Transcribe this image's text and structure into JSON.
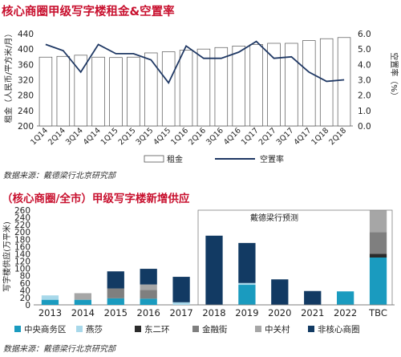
{
  "chart_data": [
    {
      "type": "bar",
      "title": "核心商圈甲级写字楼租金&空置率",
      "ylabel": "租金（人民币/平方米/月）",
      "y2label": "空置率（%）",
      "categories": [
        "1Q14",
        "2Q14",
        "3Q14",
        "4Q14",
        "1Q15",
        "2Q15",
        "3Q15",
        "4Q15",
        "1Q16",
        "2Q16",
        "3Q16",
        "4Q16",
        "1Q17",
        "2Q17",
        "3Q17",
        "4Q17",
        "1Q18",
        "2Q18"
      ],
      "yticks": [
        "200",
        "240",
        "280",
        "320",
        "360",
        "400",
        "440"
      ],
      "y2ticks": [
        "0.0",
        "1.0",
        "2.0",
        "3.0",
        "4.0",
        "5.0",
        "6.0"
      ],
      "ylim": [
        200,
        440
      ],
      "y2lim": [
        0,
        6
      ],
      "series": [
        {
          "name": "租金",
          "type": "bar",
          "axis": "left",
          "values": [
            379,
            381,
            384,
            379,
            378,
            379,
            390,
            393,
            397,
            400,
            404,
            408,
            412,
            415,
            415,
            422,
            427,
            430
          ]
        },
        {
          "name": "空置率",
          "type": "line",
          "axis": "right",
          "values": [
            5.3,
            4.9,
            3.5,
            5.3,
            4.7,
            4.7,
            4.3,
            2.8,
            5.2,
            4.4,
            4.4,
            4.8,
            5.5,
            4.4,
            4.5,
            3.5,
            2.9,
            3.0
          ]
        }
      ],
      "legend": "bottom",
      "source": "数据来源：戴德梁行北京研究部"
    },
    {
      "type": "bar",
      "stacked": true,
      "title": "（核心商圈/全市）甲级写字楼新增供应",
      "ylabel": "写字楼供应(万平米)",
      "categories": [
        "2013",
        "2014",
        "2015",
        "2016",
        "2017",
        "2018",
        "2019",
        "2020",
        "2021",
        "2022",
        "TBC"
      ],
      "yticks": [
        "0",
        "20",
        "40",
        "60",
        "80",
        "100",
        "120",
        "140",
        "160",
        "180",
        "200",
        "220",
        "240",
        "260"
      ],
      "ylim": [
        0,
        260
      ],
      "annotation": "戴德梁行预测",
      "series": [
        {
          "name": "中央商务区",
          "color": "#1a9bbf",
          "values": [
            14,
            14,
            18,
            17,
            0,
            0,
            55,
            0,
            0,
            37,
            130
          ]
        },
        {
          "name": "燕莎",
          "color": "#a8d8ea",
          "values": [
            12,
            0,
            0,
            0,
            7,
            0,
            5,
            0,
            0,
            0,
            0
          ]
        },
        {
          "name": "东二环",
          "color": "#2b2b2b",
          "values": [
            0,
            0,
            0,
            0,
            0,
            0,
            0,
            0,
            0,
            0,
            10
          ]
        },
        {
          "name": "金融街",
          "color": "#7f7f7f",
          "values": [
            0,
            0,
            27,
            24,
            0,
            0,
            0,
            0,
            0,
            0,
            60
          ]
        },
        {
          "name": "中关村",
          "color": "#a6a6a6",
          "values": [
            0,
            18,
            0,
            15,
            0,
            0,
            0,
            0,
            0,
            0,
            60
          ]
        },
        {
          "name": "非核心商圈",
          "color": "#123a63",
          "values": [
            0,
            0,
            47,
            43,
            70,
            190,
            110,
            70,
            38,
            0,
            0
          ]
        }
      ],
      "legend": "bottom",
      "source": "数据来源：戴德梁行北京研究部"
    }
  ]
}
